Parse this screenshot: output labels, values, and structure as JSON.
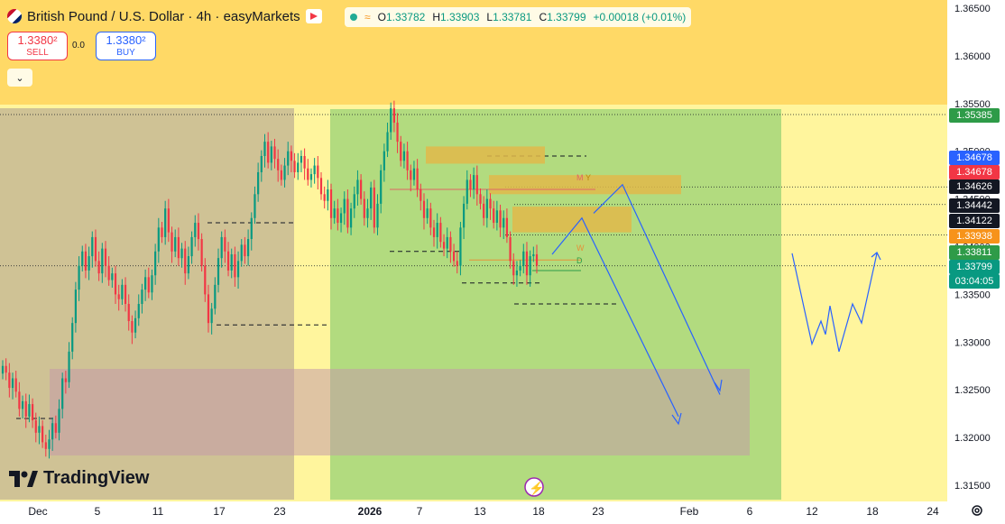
{
  "header": {
    "title": "British Pound / U.S. Dollar · 4h · easyMarkets",
    "ohlc": {
      "open_label": "O",
      "open": "1.33782",
      "high_label": "H",
      "high": "1.33903",
      "low_label": "L",
      "low": "1.33781",
      "close_label": "C",
      "close": "1.33799",
      "change": "+0.00018 (+0.01%)"
    }
  },
  "trade": {
    "sell_price": "1.3380²",
    "sell_label": "SELL",
    "spread": "0.0",
    "buy_price": "1.3380²",
    "buy_label": "BUY"
  },
  "brand": "TradingView",
  "colors": {
    "up": "#089981",
    "down": "#f23645",
    "band": "#ffd966",
    "chart_bg": "#fff59d",
    "green_zone": "#a5d67a",
    "brown_zone": "#c7b994",
    "target_zone": "#b8a9ab",
    "projection": "#2962ff"
  },
  "chart_data": {
    "type": "candlestick",
    "timeframe": "4h",
    "y_ticks": [
      "1.36500",
      "1.36000",
      "1.35500",
      "1.35000",
      "1.34500",
      "1.34000",
      "1.33500",
      "1.33000",
      "1.32500",
      "1.32000",
      "1.31500"
    ],
    "x_ticks": [
      "Dec",
      "5",
      "11",
      "17",
      "23",
      "2026",
      "7",
      "13",
      "18",
      "23",
      "Feb",
      "6",
      "12",
      "18",
      "24"
    ],
    "ylim": [
      1.3135,
      1.366
    ],
    "price_labels": [
      {
        "value": "1.35385",
        "color": "#2e9b48"
      },
      {
        "value": "1.34678",
        "color": "#2962ff"
      },
      {
        "value": "1.34678",
        "color": "#f23645"
      },
      {
        "value": "1.34626",
        "color": "#131722"
      },
      {
        "value": "1.34442",
        "color": "#131722"
      },
      {
        "value": "1.34122",
        "color": "#131722"
      },
      {
        "value": "1.33938",
        "color": "#f7931a"
      },
      {
        "value": "1.33811",
        "color": "#2e9b48"
      },
      {
        "value": "1.33799",
        "color": "#089981"
      }
    ],
    "countdown": "03:04:05",
    "annotations": {
      "m": "M",
      "y": "Y",
      "w": "W",
      "d": "D"
    },
    "closes": [
      1.3275,
      1.3268,
      1.3252,
      1.3262,
      1.3248,
      1.323,
      1.3238,
      1.3222,
      1.3235,
      1.3218,
      1.3205,
      1.3212,
      1.3195,
      1.3188,
      1.3198,
      1.3215,
      1.3205,
      1.323,
      1.3262,
      1.3258,
      1.329,
      1.332,
      1.3355,
      1.338,
      1.3395,
      1.3375,
      1.339,
      1.341,
      1.3385,
      1.3372,
      1.3398,
      1.338,
      1.3365,
      1.3372,
      1.335,
      1.3345,
      1.336,
      1.334,
      1.3322,
      1.331,
      1.3325,
      1.334,
      1.3355,
      1.3368,
      1.3352,
      1.337,
      1.3395,
      1.342,
      1.341,
      1.344,
      1.3415,
      1.3395,
      1.341,
      1.3388,
      1.3398,
      1.3372,
      1.339,
      1.341,
      1.3425,
      1.3408,
      1.338,
      1.335,
      1.332,
      1.3335,
      1.336,
      1.3388,
      1.341,
      1.3395,
      1.3375,
      1.3392,
      1.3368,
      1.3385,
      1.3402,
      1.339,
      1.3408,
      1.343,
      1.3455,
      1.3478,
      1.3495,
      1.351,
      1.3488,
      1.3505,
      1.3492,
      1.348,
      1.347,
      1.3485,
      1.35,
      1.349,
      1.3478,
      1.3488,
      1.3495,
      1.3482,
      1.347,
      1.3476,
      1.3485,
      1.3472,
      1.3455,
      1.3448,
      1.346,
      1.343,
      1.344,
      1.3425,
      1.3435,
      1.345,
      1.342,
      1.344,
      1.3455,
      1.347,
      1.345,
      1.343,
      1.344,
      1.3462,
      1.342,
      1.3445,
      1.348,
      1.35,
      1.352,
      1.3545,
      1.353,
      1.351,
      1.349,
      1.35,
      1.348,
      1.347,
      1.3482,
      1.346,
      1.3448,
      1.343,
      1.344,
      1.342,
      1.341,
      1.3425,
      1.3405,
      1.3398,
      1.341,
      1.3395,
      1.3385,
      1.338,
      1.342,
      1.3445,
      1.347,
      1.346,
      1.3475,
      1.3455,
      1.3445,
      1.343,
      1.345,
      1.344,
      1.3425,
      1.3438,
      1.342,
      1.343,
      1.341,
      1.3385,
      1.337,
      1.3375,
      1.338,
      1.3395,
      1.337,
      1.339,
      1.3392,
      1.338
    ]
  }
}
